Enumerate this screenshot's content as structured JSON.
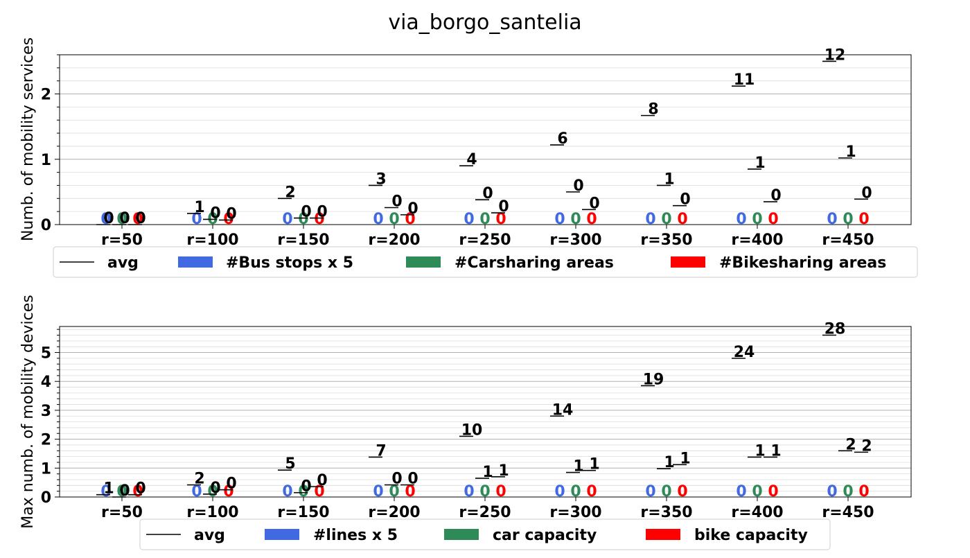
{
  "title": "via_borgo_santelia",
  "colors": {
    "avg": "#000000",
    "bus": "#4169e1",
    "car": "#2e8b57",
    "bike": "#ff0000"
  },
  "chart_data": [
    {
      "type": "bar",
      "ylabel": "Numb. of mobility services",
      "categories": [
        "r=50",
        "r=100",
        "r=150",
        "r=200",
        "r=250",
        "r=300",
        "r=350",
        "r=400",
        "r=450"
      ],
      "ylim": [
        0,
        2.6
      ],
      "yticks": [
        0,
        1,
        2
      ],
      "yticks_minor_step": 0.2,
      "grid": true,
      "legend_location": "below",
      "legend": [
        "avg",
        "#Bus stops x 5",
        "#Carsharing areas",
        "#Bikesharing areas"
      ],
      "avg_series": [
        {
          "name": "avg",
          "values": [
            0.0,
            0.17,
            0.4,
            0.6,
            0.9,
            1.22,
            1.67,
            2.12,
            2.5
          ],
          "labels": [
            "0",
            "1",
            "2",
            "3",
            "4",
            "6",
            "8",
            "11",
            "12"
          ]
        },
        {
          "name": "avg",
          "values": [
            0.0,
            0.08,
            0.1,
            0.26,
            0.38,
            0.5,
            0.6,
            0.85,
            1.02
          ],
          "labels": [
            "0",
            "0",
            "0",
            "0",
            "0",
            "0",
            "1",
            "1",
            "1"
          ]
        },
        {
          "name": "avg",
          "values": [
            0.0,
            0.07,
            0.1,
            0.15,
            0.18,
            0.23,
            0.29,
            0.35,
            0.39
          ],
          "labels": [
            "0",
            "0",
            "0",
            "0",
            "0",
            "0",
            "0",
            "0",
            "0"
          ]
        }
      ],
      "series": [
        {
          "name": "#Bus stops x 5",
          "values": [
            0,
            0,
            0,
            0,
            0,
            0,
            0,
            0,
            0
          ],
          "labels": [
            "0",
            "0",
            "0",
            "0",
            "0",
            "0",
            "0",
            "0",
            "0"
          ]
        },
        {
          "name": "#Carsharing areas",
          "values": [
            0,
            0,
            0,
            0,
            0,
            0,
            0,
            0,
            0
          ],
          "labels": [
            "0",
            "0",
            "0",
            "0",
            "0",
            "0",
            "0",
            "0",
            "0"
          ]
        },
        {
          "name": "#Bikesharing areas",
          "values": [
            0,
            0,
            0,
            0,
            0,
            0,
            0,
            0,
            0
          ],
          "labels": [
            "0",
            "0",
            "0",
            "0",
            "0",
            "0",
            "0",
            "0",
            "0"
          ]
        }
      ]
    },
    {
      "type": "bar",
      "ylabel": "Max numb. of mobility devices",
      "categories": [
        "r=50",
        "r=100",
        "r=150",
        "r=200",
        "r=250",
        "r=300",
        "r=350",
        "r=400",
        "r=450"
      ],
      "ylim": [
        0,
        5.9
      ],
      "yticks": [
        0,
        1,
        2,
        3,
        4,
        5
      ],
      "yticks_minor_step": 0.2,
      "grid": true,
      "legend_location": "below",
      "legend": [
        "avg",
        "#lines x 5",
        "car capacity",
        "bike capacity"
      ],
      "avg_series": [
        {
          "name": "avg",
          "values": [
            0.08,
            0.42,
            0.93,
            1.38,
            2.1,
            2.8,
            3.85,
            4.8,
            5.6
          ],
          "labels": [
            "1",
            "2",
            "5",
            "7",
            "10",
            "14",
            "19",
            "24",
            "28"
          ]
        },
        {
          "name": "avg",
          "values": [
            0.0,
            0.1,
            0.15,
            0.42,
            0.65,
            0.85,
            0.98,
            1.38,
            1.6
          ],
          "labels": [
            "0",
            "0",
            "0",
            "0",
            "1",
            "1",
            "1",
            "1",
            "2"
          ]
        },
        {
          "name": "avg",
          "values": [
            0.08,
            0.25,
            0.36,
            0.42,
            0.7,
            0.92,
            1.12,
            1.38,
            1.55
          ],
          "labels": [
            "0",
            "0",
            "0",
            "0",
            "1",
            "1",
            "1",
            "1",
            "2"
          ]
        }
      ],
      "series": [
        {
          "name": "#lines x 5",
          "values": [
            0,
            0,
            0,
            0,
            0,
            0,
            0,
            0,
            0
          ],
          "labels": [
            "0",
            "0",
            "0",
            "0",
            "0",
            "0",
            "0",
            "0",
            "0"
          ]
        },
        {
          "name": "car capacity",
          "values": [
            0,
            0,
            0,
            0,
            0,
            0,
            0,
            0,
            0
          ],
          "labels": [
            "0",
            "0",
            "0",
            "0",
            "0",
            "0",
            "0",
            "0",
            "0"
          ]
        },
        {
          "name": "bike capacity",
          "values": [
            0,
            0,
            0,
            0,
            0,
            0,
            0,
            0,
            0
          ],
          "labels": [
            "0",
            "0",
            "0",
            "0",
            "0",
            "0",
            "0",
            "0",
            "0"
          ]
        }
      ]
    }
  ]
}
